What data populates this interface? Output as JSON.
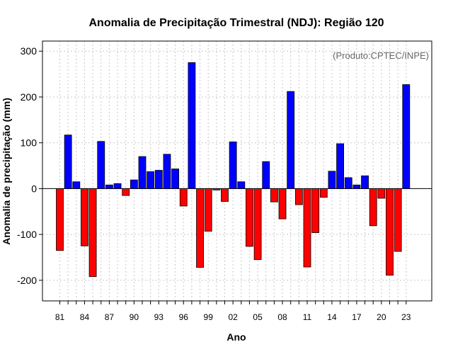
{
  "chart_data": {
    "type": "bar",
    "title": "Anomalia de Precipitação Trimestral (NDJ): Região 120",
    "xlabel": "Ano",
    "ylabel": "Anomalia de precipitação (mm)",
    "annotation": "(Produto:CPTEC/INPE)",
    "ylim": [
      -245,
      322
    ],
    "yticks": [
      -200,
      -100,
      0,
      100,
      200,
      300
    ],
    "xtick_labels": [
      "81",
      "84",
      "87",
      "90",
      "93",
      "96",
      "99",
      "02",
      "05",
      "08",
      "11",
      "14",
      "17",
      "20",
      "23"
    ],
    "xtick_every": 3,
    "grid": true,
    "years": [
      "81",
      "82",
      "83",
      "84",
      "85",
      "86",
      "87",
      "88",
      "89",
      "90",
      "91",
      "92",
      "93",
      "94",
      "95",
      "96",
      "97",
      "98",
      "99",
      "00",
      "01",
      "02",
      "03",
      "04",
      "05",
      "06",
      "07",
      "08",
      "09",
      "10",
      "11",
      "12",
      "13",
      "14",
      "15",
      "16",
      "17",
      "18",
      "19",
      "20",
      "21",
      "22",
      "23"
    ],
    "values": [
      -135,
      117,
      15,
      -125,
      -192,
      103,
      8,
      11,
      -15,
      19,
      70,
      37,
      40,
      75,
      43,
      -38,
      275,
      -172,
      -93,
      -3,
      -28,
      102,
      15,
      -126,
      -155,
      59,
      -29,
      -66,
      212,
      -35,
      -171,
      -96,
      -19,
      38,
      98,
      24,
      8,
      28,
      -81,
      -21,
      -189,
      -137,
      227
    ],
    "colors": {
      "positive": "#0000ff",
      "negative": "#ff0000",
      "border": "#000000",
      "grid": "#c8c8c8",
      "zero_line": "#000000"
    }
  }
}
